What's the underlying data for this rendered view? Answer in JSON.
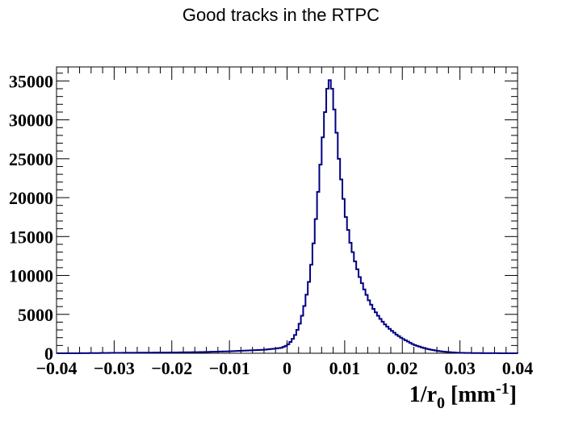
{
  "chart_data": {
    "type": "histogram",
    "title": "Good tracks in the RTPC",
    "xlabel": {
      "main": "1/r",
      "sub": "0",
      "unit": " [mm",
      "sup": "-1",
      "close": "]"
    },
    "ylabel": "",
    "xlim": [
      -0.04,
      0.04
    ],
    "ylim": [
      0,
      36800
    ],
    "x_ticks": [
      -0.04,
      -0.03,
      -0.02,
      -0.01,
      0,
      0.01,
      0.02,
      0.03,
      0.04
    ],
    "x_tick_labels": [
      "−0.04",
      "−0.03",
      "−0.02",
      "−0.01",
      "0",
      "0.01",
      "0.02",
      "0.03",
      "0.04"
    ],
    "y_ticks": [
      0,
      5000,
      10000,
      15000,
      20000,
      25000,
      30000,
      35000
    ],
    "y_tick_labels": [
      "0",
      "5000",
      "10000",
      "15000",
      "20000",
      "25000",
      "30000",
      "35000"
    ],
    "line_color": "#000080",
    "grid": false,
    "bin_width": 0.0004,
    "bins": [
      {
        "x": -0.037,
        "y": 0
      },
      {
        "x": -0.03,
        "y": 50
      },
      {
        "x": -0.02,
        "y": 100
      },
      {
        "x": -0.015,
        "y": 150
      },
      {
        "x": -0.01,
        "y": 250
      },
      {
        "x": -0.006,
        "y": 380
      },
      {
        "x": -0.004,
        "y": 450
      },
      {
        "x": -0.002,
        "y": 600
      },
      {
        "x": -0.001,
        "y": 700
      },
      {
        "x": 0.0,
        "y": 1000
      },
      {
        "x": 0.0008,
        "y": 1600
      },
      {
        "x": 0.0016,
        "y": 2600
      },
      {
        "x": 0.0024,
        "y": 4200
      },
      {
        "x": 0.0032,
        "y": 6700
      },
      {
        "x": 0.004,
        "y": 10000
      },
      {
        "x": 0.0048,
        "y": 15500
      },
      {
        "x": 0.0056,
        "y": 22500
      },
      {
        "x": 0.0064,
        "y": 29500
      },
      {
        "x": 0.007,
        "y": 34000
      },
      {
        "x": 0.0074,
        "y": 35100
      },
      {
        "x": 0.0078,
        "y": 34000
      },
      {
        "x": 0.0084,
        "y": 30000
      },
      {
        "x": 0.009,
        "y": 25000
      },
      {
        "x": 0.0096,
        "y": 21000
      },
      {
        "x": 0.0102,
        "y": 17500
      },
      {
        "x": 0.011,
        "y": 14200
      },
      {
        "x": 0.0118,
        "y": 11800
      },
      {
        "x": 0.0126,
        "y": 9800
      },
      {
        "x": 0.0134,
        "y": 8200
      },
      {
        "x": 0.0142,
        "y": 6800
      },
      {
        "x": 0.015,
        "y": 5700
      },
      {
        "x": 0.016,
        "y": 4600
      },
      {
        "x": 0.017,
        "y": 3700
      },
      {
        "x": 0.018,
        "y": 3000
      },
      {
        "x": 0.019,
        "y": 2400
      },
      {
        "x": 0.02,
        "y": 1900
      },
      {
        "x": 0.021,
        "y": 1500
      },
      {
        "x": 0.022,
        "y": 1100
      },
      {
        "x": 0.023,
        "y": 850
      },
      {
        "x": 0.024,
        "y": 620
      },
      {
        "x": 0.025,
        "y": 450
      },
      {
        "x": 0.026,
        "y": 320
      },
      {
        "x": 0.027,
        "y": 220
      },
      {
        "x": 0.028,
        "y": 150
      },
      {
        "x": 0.029,
        "y": 100
      },
      {
        "x": 0.03,
        "y": 60
      },
      {
        "x": 0.032,
        "y": 30
      },
      {
        "x": 0.035,
        "y": 10
      },
      {
        "x": 0.04,
        "y": 0
      }
    ]
  }
}
